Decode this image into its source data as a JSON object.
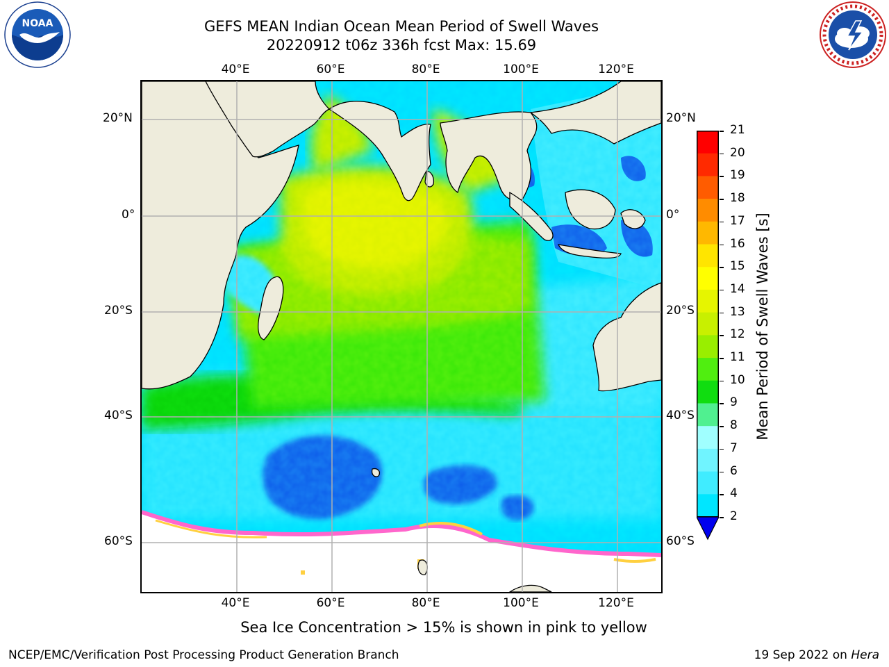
{
  "header": {
    "title_line1": "GEFS MEAN Indian Ocean Mean Period of Swell Waves",
    "title_line2": "20220912 t06z 336h fcst   Max: 15.69"
  },
  "logos": {
    "left": {
      "icon": "noaa-logo-icon",
      "text": "NOAA",
      "ring_text": "NATIONAL OCEANIC AND ATMOSPHERIC ADMINISTRATION · U.S. DEPARTMENT OF COMMERCE"
    },
    "right": {
      "icon": "nws-logo-icon",
      "ring_text": "NATIONAL WEATHER SERVICE"
    }
  },
  "map": {
    "lon_ticks": [
      "40°E",
      "60°E",
      "80°E",
      "100°E",
      "120°E"
    ],
    "lat_ticks_left": [
      "20°N",
      "0°",
      "20°S",
      "40°S",
      "60°S"
    ],
    "lat_ticks_right": [
      "20°N",
      "0°",
      "20°S",
      "40°S",
      "60°S"
    ],
    "colors": {
      "land": "#eeecdc",
      "ice": "#ffffff",
      "grid": "#b0b0b0",
      "coast": "#000000"
    }
  },
  "colorbar": {
    "label": "Mean Period of Swell Waves [s]",
    "ticks": [
      "2",
      "4",
      "6",
      "7",
      "8",
      "9",
      "10",
      "11",
      "12",
      "13",
      "14",
      "15",
      "16",
      "17",
      "18",
      "19",
      "20",
      "21"
    ],
    "colors": [
      "#0a60f0",
      "#00e6ff",
      "#40ecff",
      "#70f4ff",
      "#a0ffff",
      "#50f090",
      "#10dd10",
      "#50ee10",
      "#99ee00",
      "#c8f000",
      "#e6f500",
      "#ffff00",
      "#ffe500",
      "#ffb800",
      "#ff8c00",
      "#ff5c00",
      "#ff2a00",
      "#ff0000"
    ],
    "under_color": "#0000ee"
  },
  "caption": "Sea Ice Concentration > 15% is shown in pink to yellow",
  "footer": {
    "left": "NCEP/EMC/Verification Post Processing Product Generation Branch",
    "right_prefix": "19 Sep 2022 on ",
    "right_machine": "Hera"
  }
}
